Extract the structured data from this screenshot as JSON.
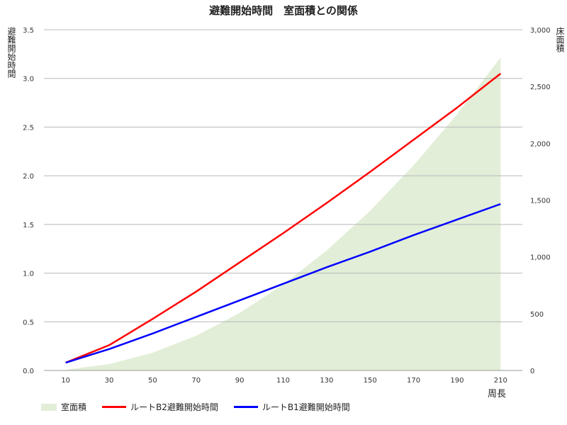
{
  "chart_data": {
    "type": "line",
    "title": "避難開始時間　室面積との関係",
    "xlabel": "周長",
    "ylabel_left": "避難開始時間",
    "ylabel_right": "床面積",
    "x": [
      10,
      30,
      50,
      70,
      90,
      110,
      130,
      150,
      170,
      190,
      210
    ],
    "ylim_left": [
      0,
      3.5
    ],
    "yticks_left": [
      "0.0",
      "0.5",
      "1.0",
      "1.5",
      "2.0",
      "2.5",
      "3.0",
      "3.5"
    ],
    "ylim_right": [
      0,
      3000
    ],
    "yticks_right": [
      "0",
      "500",
      "1,000",
      "1,500",
      "2,000",
      "2,500",
      "3,000"
    ],
    "grid": true,
    "legend_position": "bottom-left",
    "series": [
      {
        "name": "室面積",
        "type": "area",
        "axis": "right",
        "color": "#e2eed7",
        "values": [
          6,
          56,
          156,
          306,
          506,
          756,
          1056,
          1406,
          1806,
          2256,
          2756
        ]
      },
      {
        "name": "ルートB2避難開始時間",
        "type": "line",
        "axis": "left",
        "color": "#ff0000",
        "values": [
          0.08,
          0.26,
          0.53,
          0.81,
          1.11,
          1.41,
          1.72,
          2.04,
          2.37,
          2.7,
          3.05
        ]
      },
      {
        "name": "ルートB1避難開始時間",
        "type": "line",
        "axis": "left",
        "color": "#0000ff",
        "values": [
          0.08,
          0.22,
          0.38,
          0.55,
          0.72,
          0.89,
          1.06,
          1.22,
          1.39,
          1.55,
          1.71
        ]
      }
    ]
  }
}
